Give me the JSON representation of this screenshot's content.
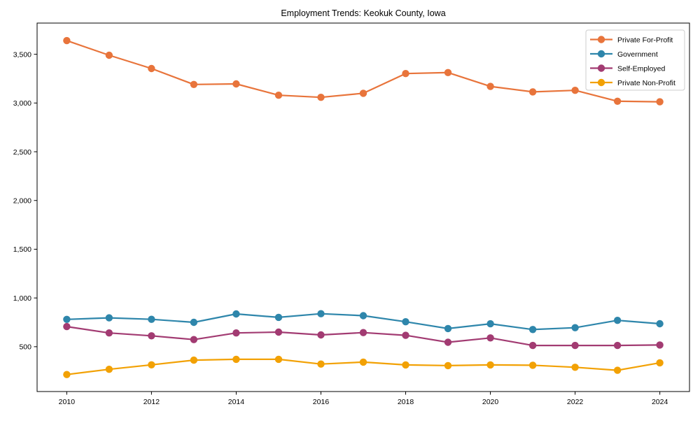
{
  "chart_data": {
    "type": "line",
    "title": "Employment Trends: Keokuk County, Iowa",
    "xlabel": "",
    "ylabel": "",
    "grid": false,
    "legend_position": "upper right",
    "background_color": "#ffffff",
    "axis_color": "#000000",
    "x": [
      2010,
      2011,
      2012,
      2013,
      2014,
      2015,
      2016,
      2017,
      2018,
      2019,
      2020,
      2021,
      2022,
      2023,
      2024
    ],
    "x_ticks": [
      2010,
      2012,
      2014,
      2016,
      2018,
      2020,
      2022,
      2024
    ],
    "y_ticks": [
      500,
      1000,
      1500,
      2000,
      2500,
      3000,
      3500
    ],
    "y_tick_labels": [
      "500",
      "1,000",
      "1,500",
      "2,000",
      "2,500",
      "3,000",
      "3,500"
    ],
    "xlim": [
      2009.3,
      2024.7
    ],
    "ylim": [
      40,
      3820
    ],
    "series": [
      {
        "name": "Private For-Profit",
        "color": "#E8743B",
        "values": [
          3640,
          3490,
          3354,
          3190,
          3196,
          3080,
          3058,
          3100,
          3302,
          3312,
          3170,
          3114,
          3130,
          3018,
          3012
        ]
      },
      {
        "name": "Government",
        "color": "#2E86AB",
        "values": [
          780,
          796,
          781,
          750,
          836,
          801,
          838,
          818,
          756,
          686,
          735,
          676,
          695,
          770,
          736
        ]
      },
      {
        "name": "Self-Employed",
        "color": "#A23B72",
        "values": [
          706,
          641,
          612,
          573,
          641,
          650,
          621,
          645,
          617,
          546,
          590,
          513,
          513,
          513,
          518
        ]
      },
      {
        "name": "Private Non-Profit",
        "color": "#F2A104",
        "values": [
          214,
          268,
          314,
          362,
          371,
          371,
          322,
          342,
          313,
          306,
          313,
          310,
          289,
          258,
          335
        ]
      }
    ]
  }
}
